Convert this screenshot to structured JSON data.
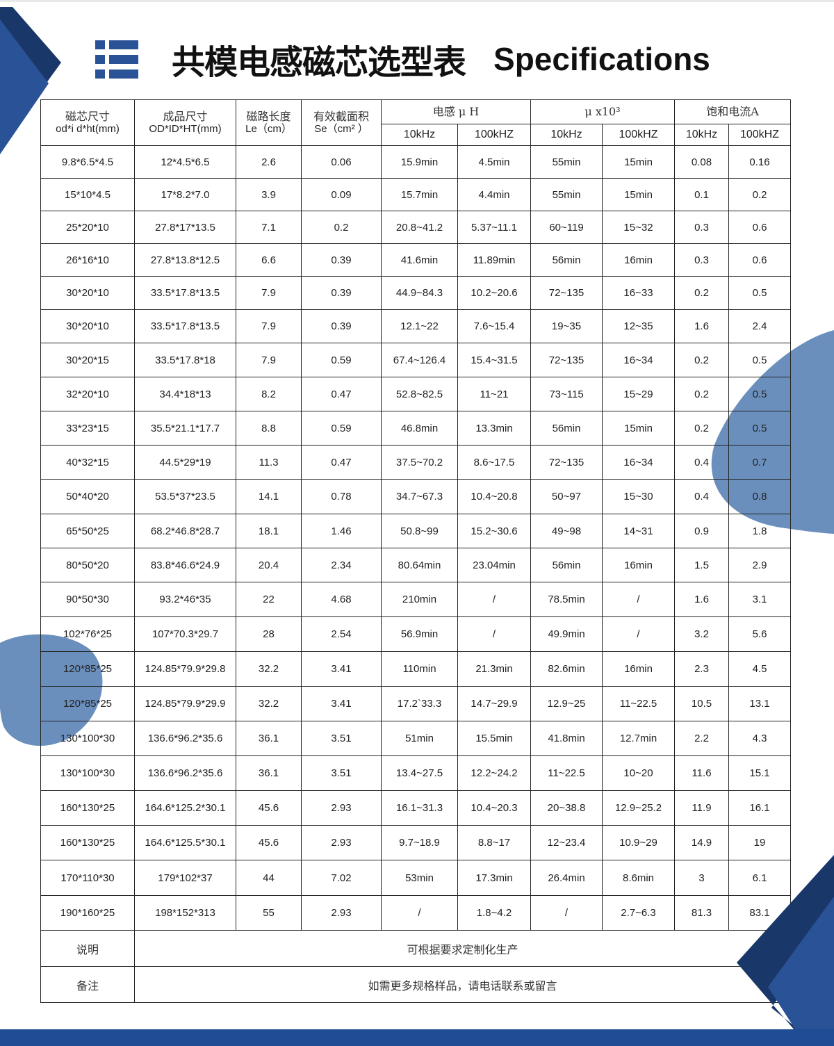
{
  "title": {
    "chinese": "共模电感磁芯选型表",
    "english": "Specifications",
    "icon": "list-icon"
  },
  "colors": {
    "brand_blue": "#1f4c94",
    "dark_blue": "#1a3769",
    "blob_blue": "#6b8fbd"
  },
  "table": {
    "headers": {
      "core_size": "磁芯尺寸",
      "core_size_unit": "od*i d*ht(mm)",
      "finished_size": "成品尺寸",
      "finished_size_unit": "OD*ID*HT(mm)",
      "path_length": "磁路长度",
      "path_length_unit": "Le（cm）",
      "area": "有效截面积",
      "area_unit": "Se（cm² ）",
      "inductance": "电感 μ H",
      "permeability": "μ x10³",
      "saturation": "饱和电流A",
      "freq_10k": "10kHz",
      "freq_100k": "100kHZ"
    },
    "rows": [
      [
        "9.8*6.5*4.5",
        "12*4.5*6.5",
        "2.6",
        "0.06",
        "15.9min",
        "4.5min",
        "55min",
        "15min",
        "0.08",
        "0.16"
      ],
      [
        "15*10*4.5",
        "17*8.2*7.0",
        "3.9",
        "0.09",
        "15.7min",
        "4.4min",
        "55min",
        "15min",
        "0.1",
        "0.2"
      ],
      [
        "25*20*10",
        "27.8*17*13.5",
        "7.1",
        "0.2",
        "20.8~41.2",
        "5.37~11.1",
        "60~119",
        "15~32",
        "0.3",
        "0.6"
      ],
      [
        "26*16*10",
        "27.8*13.8*12.5",
        "6.6",
        "0.39",
        "41.6min",
        "11.89min",
        "56min",
        "16min",
        "0.3",
        "0.6"
      ],
      [
        "30*20*10",
        "33.5*17.8*13.5",
        "7.9",
        "0.39",
        "44.9~84.3",
        "10.2~20.6",
        "72~135",
        "16~33",
        "0.2",
        "0.5"
      ],
      [
        "30*20*10",
        "33.5*17.8*13.5",
        "7.9",
        "0.39",
        "12.1~22",
        "7.6~15.4",
        "19~35",
        "12~35",
        "1.6",
        "2.4"
      ],
      [
        "30*20*15",
        "33.5*17.8*18",
        "7.9",
        "0.59",
        "67.4~126.4",
        "15.4~31.5",
        "72~135",
        "16~34",
        "0.2",
        "0.5"
      ],
      [
        "32*20*10",
        "34.4*18*13",
        "8.2",
        "0.47",
        "52.8~82.5",
        "11~21",
        "73~115",
        "15~29",
        "0.2",
        "0.5"
      ],
      [
        "33*23*15",
        "35.5*21.1*17.7",
        "8.8",
        "0.59",
        "46.8min",
        "13.3min",
        "56min",
        "15min",
        "0.2",
        "0.5"
      ],
      [
        "40*32*15",
        "44.5*29*19",
        "11.3",
        "0.47",
        "37.5~70.2",
        "8.6~17.5",
        "72~135",
        "16~34",
        "0.4",
        "0.7"
      ],
      [
        "50*40*20",
        "53.5*37*23.5",
        "14.1",
        "0.78",
        "34.7~67.3",
        "10.4~20.8",
        "50~97",
        "15~30",
        "0.4",
        "0.8"
      ],
      [
        "65*50*25",
        "68.2*46.8*28.7",
        "18.1",
        "1.46",
        "50.8~99",
        "15.2~30.6",
        "49~98",
        "14~31",
        "0.9",
        "1.8"
      ],
      [
        "80*50*20",
        "83.8*46.6*24.9",
        "20.4",
        "2.34",
        "80.64min",
        "23.04min",
        "56min",
        "16min",
        "1.5",
        "2.9"
      ],
      [
        "90*50*30",
        "93.2*46*35",
        "22",
        "4.68",
        "210min",
        "/",
        "78.5min",
        "/",
        "1.6",
        "3.1"
      ],
      [
        "102*76*25",
        "107*70.3*29.7",
        "28",
        "2.54",
        "56.9min",
        "/",
        "49.9min",
        "/",
        "3.2",
        "5.6"
      ],
      [
        "120*85*25",
        "124.85*79.9*29.8",
        "32.2",
        "3.41",
        "110min",
        "21.3min",
        "82.6min",
        "16min",
        "2.3",
        "4.5"
      ],
      [
        "120*85*25",
        "124.85*79.9*29.9",
        "32.2",
        "3.41",
        "17.2`33.3",
        "14.7~29.9",
        "12.9~25",
        "11~22.5",
        "10.5",
        "13.1"
      ],
      [
        "130*100*30",
        "136.6*96.2*35.6",
        "36.1",
        "3.51",
        "51min",
        "15.5min",
        "41.8min",
        "12.7min",
        "2.2",
        "4.3"
      ],
      [
        "130*100*30",
        "136.6*96.2*35.6",
        "36.1",
        "3.51",
        "13.4~27.5",
        "12.2~24.2",
        "11~22.5",
        "10~20",
        "11.6",
        "15.1"
      ],
      [
        "160*130*25",
        "164.6*125.2*30.1",
        "45.6",
        "2.93",
        "16.1~31.3",
        "10.4~20.3",
        "20~38.8",
        "12.9~25.2",
        "11.9",
        "16.1"
      ],
      [
        "160*130*25",
        "164.6*125.5*30.1",
        "45.6",
        "2.93",
        "9.7~18.9",
        "8.8~17",
        "12~23.4",
        "10.9~29",
        "14.9",
        "19"
      ],
      [
        "170*110*30",
        "179*102*37",
        "44",
        "7.02",
        "53min",
        "17.3min",
        "26.4min",
        "8.6min",
        "3",
        "6.1"
      ],
      [
        "190*160*25",
        "198*152*313",
        "55",
        "2.93",
        "/",
        "1.8~4.2",
        "/",
        "2.7~6.3",
        "81.3",
        "83.1"
      ]
    ],
    "notes": [
      {
        "label": "说明",
        "text": "可根据要求定制化生产"
      },
      {
        "label": "备注",
        "text": "如需更多规格样品，请电话联系或留言"
      }
    ]
  }
}
